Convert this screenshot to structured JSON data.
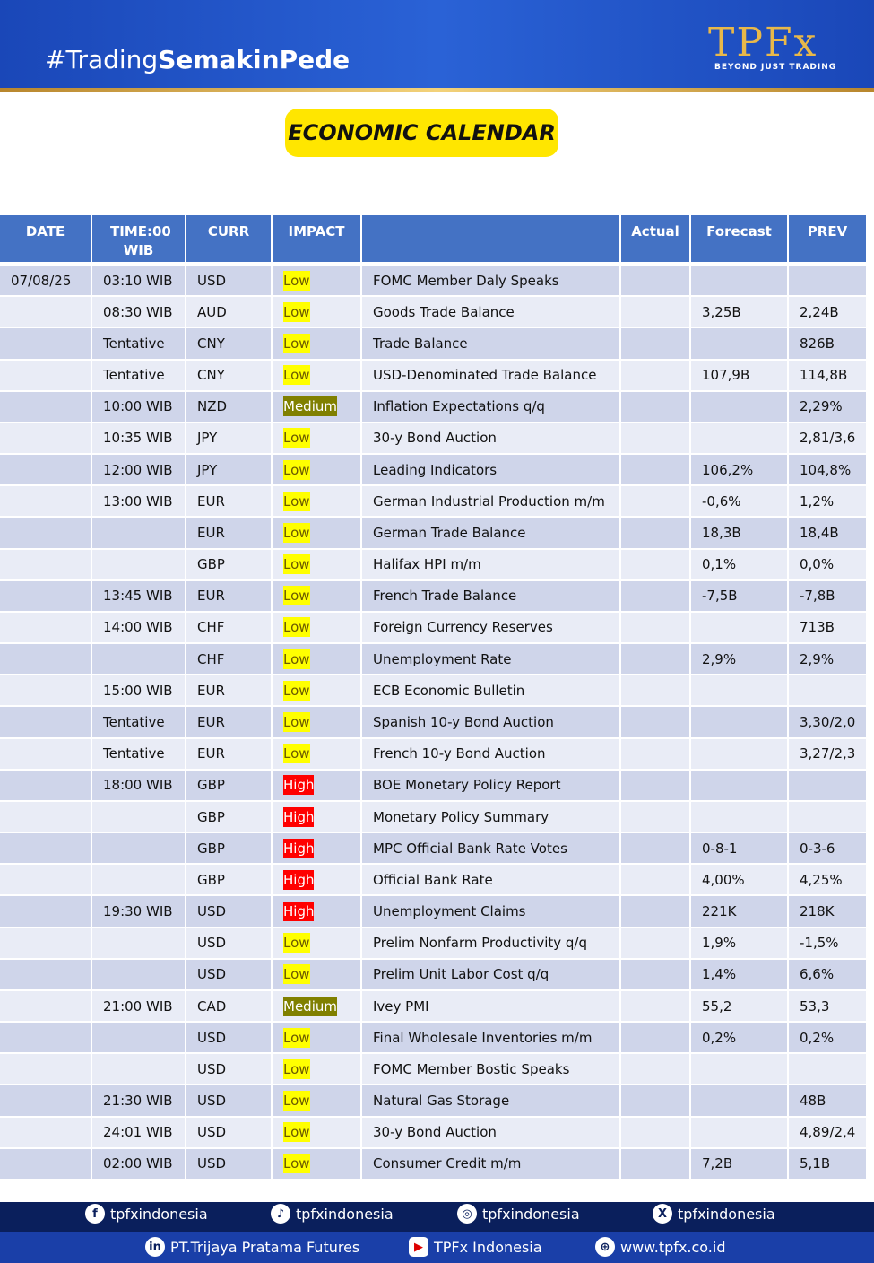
{
  "header": {
    "hashtag_prefix": "#Trading",
    "hashtag_bold": "SemakinPede",
    "logo": "TPFx",
    "tagline": "BEYOND JUST TRADING"
  },
  "title": "ECONOMIC CALENDAR",
  "table": {
    "headers": [
      "DATE",
      "TIME:00 WIB",
      "CURR",
      "IMPACT",
      null,
      "Actual",
      "Forecast",
      "PREV"
    ],
    "impact_colors": {
      "Low": "#ffff00",
      "Medium": "#808000",
      "High": "#ff0000"
    },
    "rows": [
      [
        "07/08/25",
        "03:10 WIB",
        "USD",
        "Low",
        "FOMC Member Daly Speaks",
        null,
        null,
        null
      ],
      [
        null,
        "08:30 WIB",
        "AUD",
        "Low",
        "Goods Trade Balance",
        null,
        "3,25B",
        "2,24B"
      ],
      [
        null,
        "Tentative",
        "CNY",
        "Low",
        "Trade Balance",
        null,
        null,
        "826B"
      ],
      [
        null,
        "Tentative",
        "CNY",
        "Low",
        "USD-Denominated Trade Balance",
        null,
        "107,9B",
        "114,8B"
      ],
      [
        null,
        "10:00 WIB",
        "NZD",
        "Medium",
        "Inflation Expectations q/q",
        null,
        null,
        "2,29%"
      ],
      [
        null,
        "10:35 WIB",
        "JPY",
        "Low",
        "30-y Bond Auction",
        null,
        null,
        "2,81/3,6"
      ],
      [
        null,
        "12:00 WIB",
        "JPY",
        "Low",
        "Leading Indicators",
        null,
        "106,2%",
        "104,8%"
      ],
      [
        null,
        "13:00 WIB",
        "EUR",
        "Low",
        "German Industrial Production m/m",
        null,
        "-0,6%",
        "1,2%"
      ],
      [
        null,
        null,
        "EUR",
        "Low",
        "German Trade Balance",
        null,
        "18,3B",
        "18,4B"
      ],
      [
        null,
        null,
        "GBP",
        "Low",
        "Halifax HPI m/m",
        null,
        "0,1%",
        "0,0%"
      ],
      [
        null,
        "13:45 WIB",
        "EUR",
        "Low",
        "French Trade Balance",
        null,
        "-7,5B",
        "-7,8B"
      ],
      [
        null,
        "14:00 WIB",
        "CHF",
        "Low",
        "Foreign Currency Reserves",
        null,
        null,
        "713B"
      ],
      [
        null,
        null,
        "CHF",
        "Low",
        "Unemployment Rate",
        null,
        "2,9%",
        "2,9%"
      ],
      [
        null,
        "15:00 WIB",
        "EUR",
        "Low",
        "ECB Economic Bulletin",
        null,
        null,
        null
      ],
      [
        null,
        "Tentative",
        "EUR",
        "Low",
        "Spanish 10-y Bond Auction",
        null,
        null,
        "3,30/2,0"
      ],
      [
        null,
        "Tentative",
        "EUR",
        "Low",
        "French 10-y Bond Auction",
        null,
        null,
        "3,27/2,3"
      ],
      [
        null,
        "18:00 WIB",
        "GBP",
        "High",
        "BOE Monetary Policy Report",
        null,
        null,
        null
      ],
      [
        null,
        null,
        "GBP",
        "High",
        "Monetary Policy Summary",
        null,
        null,
        null
      ],
      [
        null,
        null,
        "GBP",
        "High",
        "MPC Official Bank Rate Votes",
        null,
        "0-8-1",
        "0-3-6"
      ],
      [
        null,
        null,
        "GBP",
        "High",
        "Official Bank Rate",
        null,
        "4,00%",
        "4,25%"
      ],
      [
        null,
        "19:30 WIB",
        "USD",
        "High",
        "Unemployment Claims",
        null,
        "221K",
        "218K"
      ],
      [
        null,
        null,
        "USD",
        "Low",
        "Prelim Nonfarm Productivity q/q",
        null,
        "1,9%",
        "-1,5%"
      ],
      [
        null,
        null,
        "USD",
        "Low",
        "Prelim Unit Labor Cost q/q",
        null,
        "1,4%",
        "6,6%"
      ],
      [
        null,
        "21:00 WIB",
        "CAD",
        "Medium",
        "Ivey PMI",
        null,
        "55,2",
        "53,3"
      ],
      [
        null,
        null,
        "USD",
        "Low",
        "Final Wholesale Inventories m/m",
        null,
        "0,2%",
        "0,2%"
      ],
      [
        null,
        null,
        "USD",
        "Low",
        "FOMC Member Bostic Speaks",
        null,
        null,
        null
      ],
      [
        null,
        "21:30 WIB",
        "USD",
        "Low",
        "Natural Gas Storage",
        null,
        null,
        "48B"
      ],
      [
        null,
        "24:01 WIB",
        "USD",
        "Low",
        "30-y Bond Auction",
        null,
        null,
        "4,89/2,4"
      ],
      [
        null,
        "02:00 WIB",
        "USD",
        "Low",
        "Consumer Credit m/m",
        null,
        "7,2B",
        "5,1B"
      ]
    ]
  },
  "footer": {
    "facebook": "tpfxindonesia",
    "tiktok": "tpfxindonesia",
    "instagram": "tpfxindonesia",
    "x": "tpfxindonesia",
    "linkedin": "PT.Trijaya Pratama Futures",
    "youtube": "TPFx Indonesia",
    "website": "www.tpfx.co.id"
  }
}
